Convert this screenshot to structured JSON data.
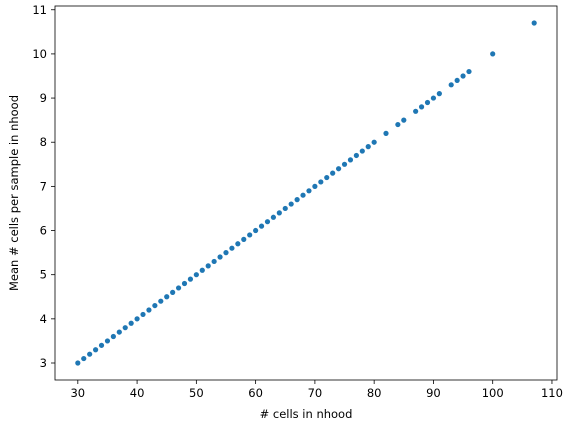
{
  "chart_data": {
    "type": "scatter",
    "xlabel": "# cells in nhood",
    "ylabel": "Mean # cells per sample in nhood",
    "xlim": [
      26.15,
      110.85
    ],
    "ylim": [
      2.615,
      11.085
    ],
    "xticks": [
      30,
      40,
      50,
      60,
      70,
      80,
      90,
      100,
      110
    ],
    "yticks": [
      3,
      4,
      5,
      6,
      7,
      8,
      9,
      10,
      11
    ],
    "grid": false,
    "point_color": "#1f77b4",
    "series": [
      {
        "x": [
          30,
          31,
          32,
          33,
          34,
          35,
          36,
          37,
          38,
          39,
          40,
          41,
          42,
          43,
          44,
          45,
          46,
          47,
          48,
          49,
          50,
          51,
          52,
          53,
          54,
          55,
          56,
          57,
          58,
          59,
          60,
          61,
          62,
          63,
          64,
          65,
          66,
          67,
          68,
          69,
          70,
          71,
          72,
          73,
          74,
          75,
          76,
          77,
          78,
          79,
          80,
          82,
          84,
          85,
          87,
          88,
          89,
          90,
          91,
          93,
          94,
          95,
          96,
          100,
          107
        ],
        "y": [
          3.0,
          3.1,
          3.2,
          3.3,
          3.4,
          3.5,
          3.6,
          3.7,
          3.8,
          3.9,
          4.0,
          4.1,
          4.2,
          4.3,
          4.4,
          4.5,
          4.6,
          4.7,
          4.8,
          4.9,
          5.0,
          5.1,
          5.2,
          5.3,
          5.4,
          5.5,
          5.6,
          5.7,
          5.8,
          5.9,
          6.0,
          6.1,
          6.2,
          6.3,
          6.4,
          6.5,
          6.6,
          6.7,
          6.8,
          6.9,
          7.0,
          7.1,
          7.2,
          7.3,
          7.4,
          7.5,
          7.6,
          7.7,
          7.8,
          7.9,
          8.0,
          8.2,
          8.4,
          8.5,
          8.7,
          8.8,
          8.9,
          9.0,
          9.1,
          9.3,
          9.4,
          9.5,
          9.6,
          10.0,
          10.7
        ]
      }
    ]
  }
}
